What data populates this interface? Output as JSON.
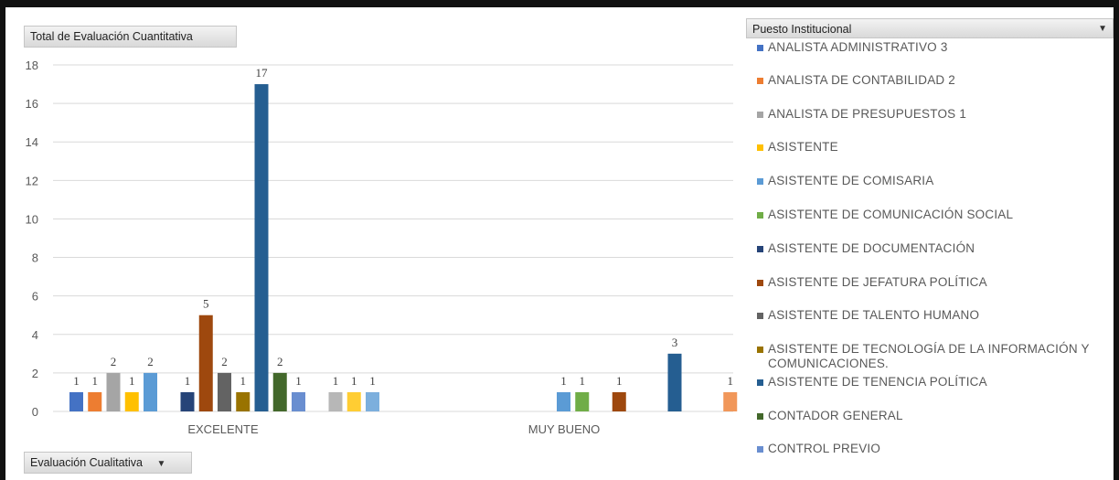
{
  "chart_data": {
    "type": "bar",
    "title": "Total de Evaluación Cuantitativa",
    "xlabel": "",
    "ylabel": "",
    "ylim": [
      0,
      18
    ],
    "yticks": [
      0,
      2,
      4,
      6,
      8,
      10,
      12,
      14,
      16,
      18
    ],
    "grid": true,
    "legend_position": "right",
    "categories": [
      "EXCELENTE",
      "MUY BUENO"
    ],
    "series": [
      {
        "name": "ANALISTA ADMINISTRATIVO 3",
        "color": "#4472c4",
        "values": [
          1,
          null
        ]
      },
      {
        "name": "ANALISTA DE CONTABILIDAD 2",
        "color": "#ed7d31",
        "values": [
          1,
          null
        ]
      },
      {
        "name": "ANALISTA DE PRESUPUESTOS 1",
        "color": "#a5a5a5",
        "values": [
          2,
          null
        ]
      },
      {
        "name": "ASISTENTE",
        "color": "#ffc000",
        "values": [
          1,
          null
        ]
      },
      {
        "name": "ASISTENTE DE COMISARIA",
        "color": "#5b9bd5",
        "values": [
          2,
          1
        ]
      },
      {
        "name": "ASISTENTE DE COMUNICACIÓN SOCIAL",
        "color": "#70ad47",
        "values": [
          null,
          1
        ]
      },
      {
        "name": "ASISTENTE DE DOCUMENTACIÓN",
        "color": "#264478",
        "values": [
          1,
          null
        ]
      },
      {
        "name": "ASISTENTE DE JEFATURA POLÍTICA",
        "color": "#9e480e",
        "values": [
          5,
          1
        ]
      },
      {
        "name": "ASISTENTE DE TALENTO HUMANO",
        "color": "#636363",
        "values": [
          2,
          null
        ]
      },
      {
        "name": "ASISTENTE DE TECNOLOGÍA DE LA INFORMACIÓN Y COMUNICACIONES.",
        "color": "#997300",
        "values": [
          1,
          null
        ]
      },
      {
        "name": "ASISTENTE DE TENENCIA POLÍTICA",
        "color": "#255e91",
        "values": [
          17,
          3
        ]
      },
      {
        "name": "CONTADOR GENERAL",
        "color": "#43682b",
        "values": [
          2,
          null
        ]
      },
      {
        "name": "CONTROL PREVIO",
        "color": "#698ed0",
        "values": [
          1,
          null
        ]
      },
      {
        "color": "#f1975a",
        "values": [
          null,
          1
        ]
      },
      {
        "color": "#b7b7b7",
        "values": [
          1,
          null
        ]
      },
      {
        "color": "#ffcd33",
        "values": [
          1,
          null
        ]
      },
      {
        "color": "#7cafdd",
        "values": [
          1,
          null
        ]
      }
    ]
  },
  "fields": {
    "value_field": "Total de Evaluación Cuantitativa",
    "legend_field": "Puesto Institucional",
    "axis_field": "Evaluación Cualitativa"
  },
  "colors": {
    "gridline": "#d9d9d9",
    "axis_text": "#595959",
    "data_label": "#404040"
  }
}
